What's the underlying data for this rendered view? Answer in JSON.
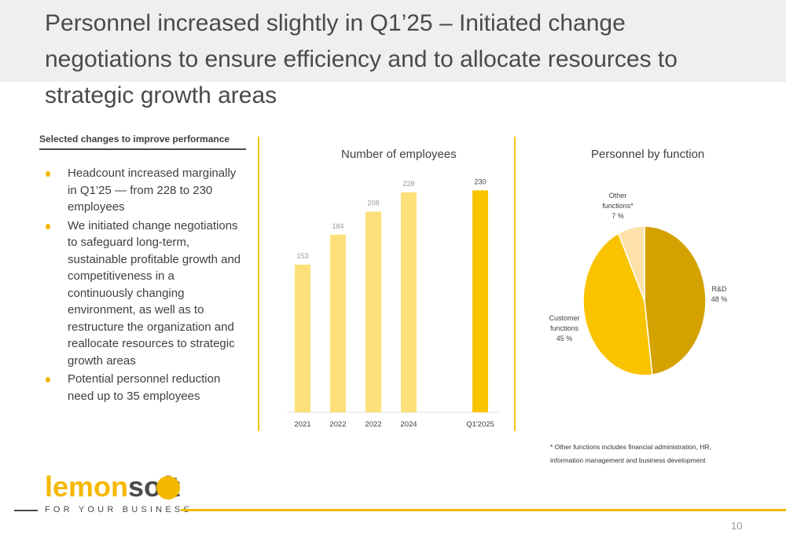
{
  "title": "Personnel increased slightly in Q1’25 – Initiated change negotiations to ensure efficiency and to allocate resources to strategic growth areas",
  "left_section": {
    "heading": "Selected changes to improve performance",
    "bullets": [
      "Headcount increased marginally in Q1’25 — from 228 to 230 employees",
      "We initiated change negotiations to safeguard long-term, sustainable profitable growth and competitiveness in a continuously changing environment, as well as to restructure the organization and reallocate resources to strategic growth areas",
      "Potential personnel reduction need up to 35 employees"
    ]
  },
  "colors": {
    "accent": "#f5b800",
    "bar_light": "#fde07a",
    "bar_highlight": "#fac400",
    "pie_rd": "#d4a200",
    "pie_customer": "#f9c300",
    "pie_other": "#fde1a8"
  },
  "chart_data": [
    {
      "type": "bar",
      "title": "Number of employees",
      "categories": [
        "2021",
        "2022",
        "2022",
        "2024",
        "Q1'2025"
      ],
      "values": [
        153,
        184,
        208,
        228,
        230
      ],
      "ylim": [
        0,
        250
      ],
      "grid": false
    },
    {
      "type": "pie",
      "title": "Personnel by function",
      "slices": [
        {
          "name": "R&D",
          "value": 48,
          "label": "48 %"
        },
        {
          "name": "Customer functions",
          "value": 45,
          "label": "45 %"
        },
        {
          "name": "Other functions*",
          "value": 7,
          "label": "7 %"
        }
      ]
    }
  ],
  "footnote": "* Other functions includes financial administration, HR, information management and business development",
  "logo": {
    "word_part1": "lemon",
    "word_part2": "soft",
    "tagline": "FOR YOUR BUSINESS"
  },
  "page_number": "10"
}
